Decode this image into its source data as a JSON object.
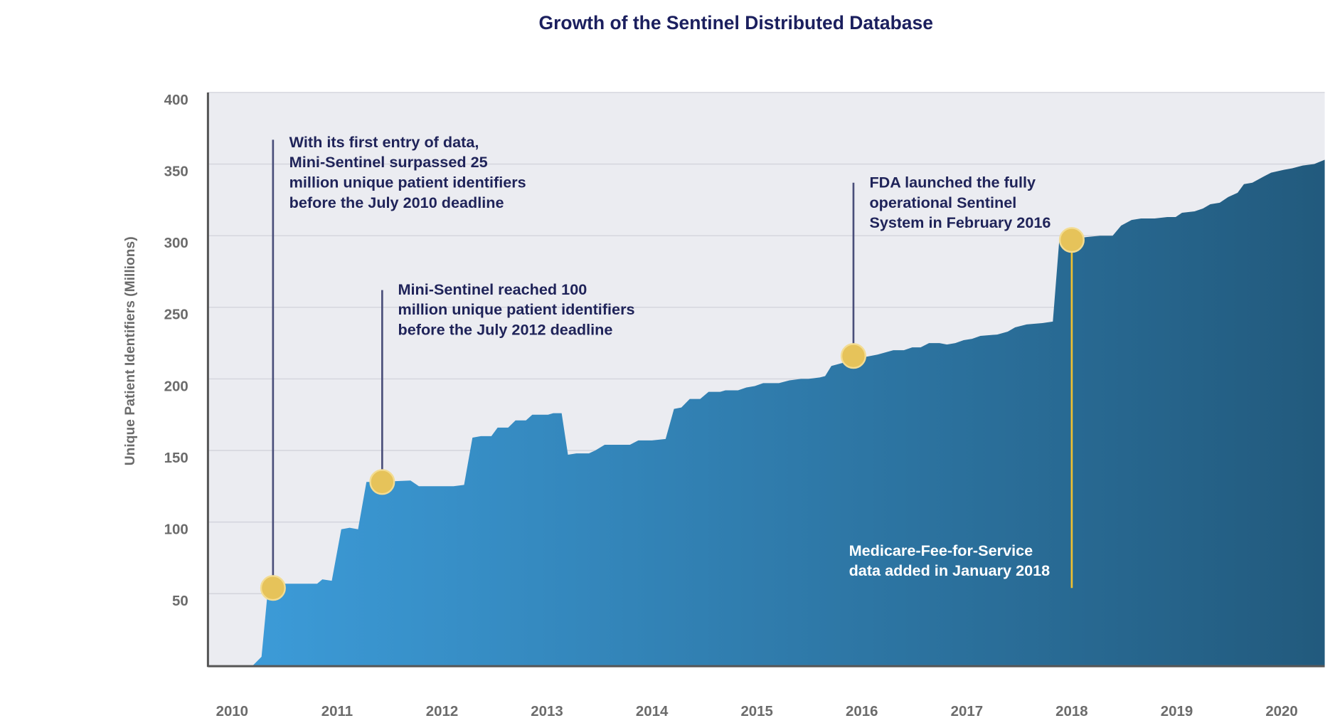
{
  "chart_data": {
    "type": "area",
    "title": "Growth of the Sentinel Distributed Database",
    "xlabel": "",
    "ylabel": "Unique Patient Identifiers (Millions)",
    "xlim": [
      2009.77,
      2020.41
    ],
    "ylim": [
      0,
      400
    ],
    "x_ticks": [
      2010,
      2011,
      2012,
      2013,
      2014,
      2015,
      2016,
      2017,
      2018,
      2019,
      2020
    ],
    "y_ticks": [
      50,
      100,
      150,
      200,
      250,
      300,
      350,
      400
    ],
    "grid": "horizontal",
    "colors": {
      "fill_start": "#3c9bd8",
      "fill_end": "#225a7d",
      "plot_bg": "#ebecf1",
      "grid": "#d3d4dc",
      "marker": "#e6c35a",
      "marker_edge": "#f3dc92",
      "leader": "#4a4f7a",
      "leader_highlight": "#f0c030"
    },
    "series": [
      {
        "x": [
          2010.2,
          2010.28,
          2010.34,
          2010.42,
          2010.81,
          2010.86,
          2010.95,
          2011.04,
          2011.12,
          2011.2,
          2011.28,
          2011.38,
          2011.7,
          2011.78,
          2012.11,
          2012.21,
          2012.29,
          2012.37,
          2012.47,
          2012.53,
          2012.63,
          2012.7,
          2012.8,
          2012.86,
          2013.01,
          2013.06,
          2013.14,
          2013.2,
          2013.28,
          2013.4,
          2013.46,
          2013.55,
          2013.79,
          2013.87,
          2014.0,
          2014.13,
          2014.21,
          2014.28,
          2014.36,
          2014.46,
          2014.54,
          2014.65,
          2014.7,
          2014.82,
          2014.9,
          2014.98,
          2015.06,
          2015.21,
          2015.31,
          2015.42,
          2015.49,
          2015.6,
          2015.65,
          2015.71,
          2015.81,
          2015.94,
          2016.15,
          2016.3,
          2016.4,
          2016.48,
          2016.56,
          2016.64,
          2016.74,
          2016.81,
          2016.89,
          2016.97,
          2017.05,
          2017.13,
          2017.29,
          2017.39,
          2017.46,
          2017.57,
          2017.72,
          2017.82,
          2017.88,
          2018.03,
          2018.14,
          2018.27,
          2018.39,
          2018.47,
          2018.57,
          2018.66,
          2018.79,
          2018.91,
          2018.99,
          2019.05,
          2019.17,
          2019.25,
          2019.32,
          2019.41,
          2019.49,
          2019.58,
          2019.64,
          2019.72,
          2019.82,
          2019.9,
          2020.02,
          2020.1,
          2020.2,
          2020.31,
          2020.41
        ],
        "y": [
          0,
          6,
          52,
          57,
          57,
          60,
          59,
          95,
          96,
          95,
          128,
          128,
          129,
          125,
          125,
          126,
          159,
          160,
          160,
          166,
          166,
          171,
          171,
          175,
          175,
          176,
          176,
          147,
          148,
          148,
          150,
          154,
          154,
          157,
          157,
          158,
          179,
          180,
          186,
          186,
          191,
          191,
          192,
          192,
          194,
          195,
          197,
          197,
          199,
          200,
          200,
          201,
          202,
          209,
          211,
          214,
          217,
          220,
          220,
          222,
          222,
          225,
          225,
          224,
          225,
          227,
          228,
          230,
          231,
          233,
          236,
          238,
          239,
          240,
          296,
          298,
          299,
          300,
          300,
          307,
          311,
          312,
          312,
          313,
          313,
          316,
          317,
          319,
          322,
          323,
          327,
          330,
          336,
          337,
          341,
          344,
          346,
          347,
          349,
          350,
          353
        ]
      }
    ],
    "annotations": [
      {
        "x": 2010.39,
        "y": 54,
        "lines": [
          "With its first entry of data,",
          "Mini-Sentinel surpassed 25",
          "million unique patient identifiers",
          "before the July 2010 deadline"
        ]
      },
      {
        "x": 2011.43,
        "y": 128,
        "lines": [
          "Mini-Sentinel reached 100",
          "million unique patient identifiers",
          "before the July 2012 deadline"
        ]
      },
      {
        "x": 2015.92,
        "y": 216,
        "lines": [
          "FDA launched the fully",
          "operational Sentinel",
          "System in February 2016"
        ]
      },
      {
        "x": 2018.0,
        "y": 297,
        "lines": [
          "Medicare-Fee-for-Service",
          "data added in January 2018"
        ]
      }
    ]
  }
}
